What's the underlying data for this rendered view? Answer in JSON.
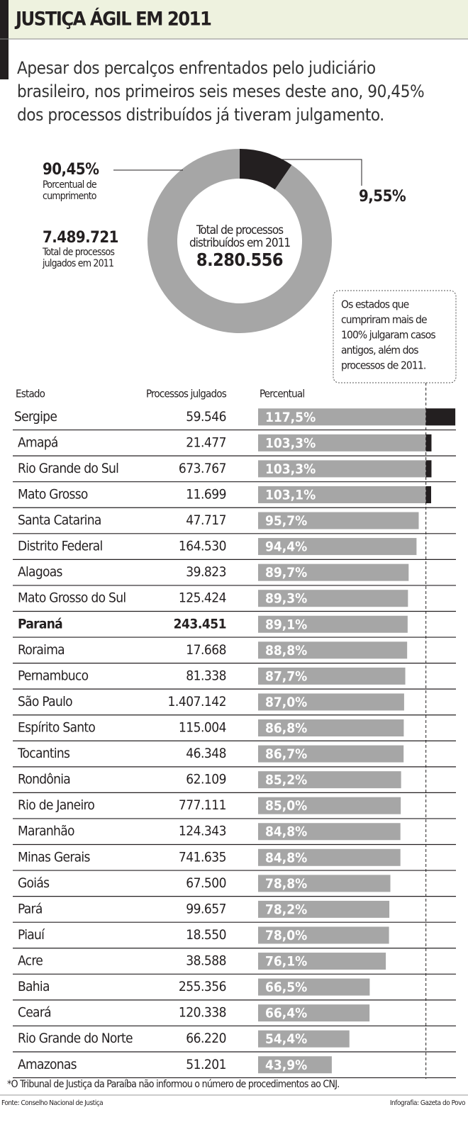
{
  "header": {
    "title": "JUSTIÇA ÁGIL EM 2011",
    "intro": [
      "Apesar dos percalços enfrentados pelo judiciário",
      "brasileiro, nos primeiros seis meses deste ano, 90,45%",
      "dos processos distribuídos já tiveram julgamento."
    ]
  },
  "chart_data": [
    {
      "type": "pie",
      "values": [
        90.45,
        9.55
      ],
      "value_labels": [
        "90,45%",
        "9,55%"
      ],
      "colors": [
        "#a6a6a6",
        "#231f20"
      ],
      "donut": true,
      "label_caption": [
        "Porcentual de",
        "cumprimento"
      ],
      "judged_total": "7.489.721",
      "judged_caption": [
        "Total de processos",
        "julgados em 2011"
      ],
      "center_caption": [
        "Total de processos",
        "distribuídos em 2011"
      ],
      "center_total": "8.280.556"
    },
    {
      "type": "bar",
      "orientation": "horizontal",
      "columns": [
        "Estado",
        "Processos julgados",
        "Percentual"
      ],
      "categories": [
        "Sergipe",
        "Amapá",
        "Rio Grande do Sul",
        "Mato Grosso",
        "Santa Catarina",
        "Distrito Federal",
        "Alagoas",
        "Mato Grosso do Sul",
        "Paraná",
        "Roraima",
        "Pernambuco",
        "São Paulo",
        "Espírito Santo",
        "Tocantins",
        "Rondônia",
        "Rio de Janeiro",
        "Maranhão",
        "Minas Gerais",
        "Goiás",
        "Pará",
        "Piauí",
        "Acre",
        "Bahia",
        "Ceará",
        "Rio Grande do Norte",
        "Amazonas"
      ],
      "judged": [
        "59.546",
        "21.477",
        "673.767",
        "11.699",
        "47.717",
        "164.530",
        "39.823",
        "125.424",
        "243.451",
        "17.668",
        "81.338",
        "1.407.142",
        "115.004",
        "46.348",
        "62.109",
        "777.111",
        "124.343",
        "741.635",
        "67.500",
        "99.657",
        "18.550",
        "38.588",
        "255.356",
        "120.338",
        "66.220",
        "51.201"
      ],
      "values": [
        117.5,
        103.3,
        103.3,
        103.1,
        95.7,
        94.4,
        89.7,
        89.3,
        89.1,
        88.8,
        87.7,
        87.0,
        86.8,
        86.7,
        85.2,
        85.0,
        84.8,
        84.8,
        78.8,
        78.2,
        78.0,
        76.1,
        66.5,
        66.4,
        54.4,
        43.9
      ],
      "value_labels": [
        "117,5%",
        "103,3%",
        "103,3%",
        "103,1%",
        "95,7%",
        "94,4%",
        "89,7%",
        "89,3%",
        "89,1%",
        "88,8%",
        "87,7%",
        "87,0%",
        "86,8%",
        "86,7%",
        "85,2%",
        "85,0%",
        "84,8%",
        "84,8%",
        "78,8%",
        "78,2%",
        "78,0%",
        "76,1%",
        "66,5%",
        "66,4%",
        "54,4%",
        "43,9%"
      ],
      "color": "#a6a6a6",
      "excess_color": "#231f20",
      "xlim": [
        0,
        120
      ],
      "reference_line": 100,
      "highlight_index": 8,
      "note": [
        "Os estados que",
        "cumpriram mais de",
        "100% julgaram casos",
        "antigos, além dos",
        "processos de 2011."
      ]
    }
  ],
  "footer": {
    "footnote": "*O Tribunal de Justiça da Paraíba não informou o número de procedimentos ao CNJ.",
    "source": "Fonte: Conselho Nacional de Justiça",
    "credit": "Infografia: Gazeta do Povo"
  }
}
